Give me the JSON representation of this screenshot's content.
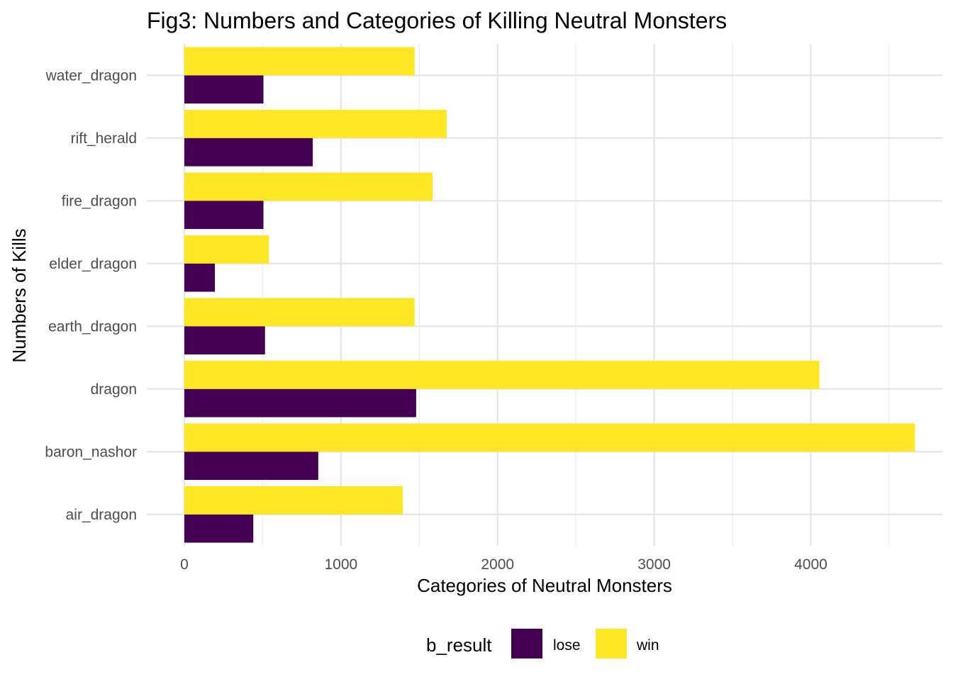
{
  "chart_data": {
    "type": "bar",
    "orientation": "horizontal",
    "title": "Fig3: Numbers and Categories of Killing Neutral Monsters",
    "xlabel": "Categories of Neutral Monsters",
    "ylabel": "Numbers of Kills",
    "categories": [
      "air_dragon",
      "baron_nashor",
      "dragon",
      "earth_dragon",
      "elder_dragon",
      "fire_dragon",
      "rift_herald",
      "water_dragon"
    ],
    "series": [
      {
        "name": "lose",
        "color": "#440154",
        "values": [
          440,
          855,
          1480,
          515,
          195,
          505,
          820,
          505
        ]
      },
      {
        "name": "win",
        "color": "#FDE725",
        "values": [
          1395,
          4665,
          4055,
          1470,
          540,
          1585,
          1675,
          1470
        ]
      }
    ],
    "xlim": [
      -240,
      4840
    ],
    "x_ticks": [
      0,
      1000,
      2000,
      3000,
      4000
    ],
    "x_tick_labels": [
      "0",
      "1000",
      "2000",
      "3000",
      "4000"
    ],
    "grid": true,
    "legend": {
      "title": "b_result",
      "position": "bottom",
      "entries": [
        "lose",
        "win"
      ]
    }
  }
}
